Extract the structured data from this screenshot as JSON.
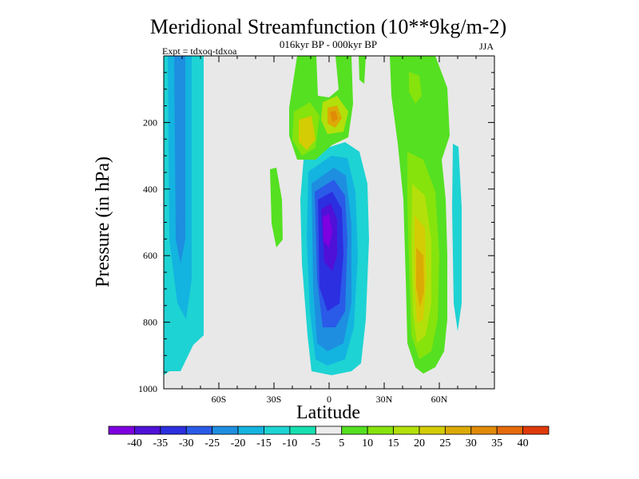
{
  "chart_data": {
    "type": "heatmap",
    "title": "Meridional Streamfunction (10**9kg/m-2)",
    "subtitle": "016kyr BP - 000kyr BP",
    "left_label": "Expt = tdxoq-tdxoa",
    "right_label": "JJA",
    "xlabel": "Latitude",
    "ylabel": "Pressure (in hPa)",
    "x_range": [
      -90,
      90
    ],
    "y_range": [
      0,
      1000
    ],
    "y_reversed": true,
    "x_ticks": [
      {
        "value": -60,
        "label": "60S"
      },
      {
        "value": -30,
        "label": "30S"
      },
      {
        "value": 0,
        "label": "0"
      },
      {
        "value": 30,
        "label": "30N"
      },
      {
        "value": 60,
        "label": "60N"
      }
    ],
    "y_ticks": [
      {
        "value": 200,
        "label": "200"
      },
      {
        "value": 400,
        "label": "400"
      },
      {
        "value": 600,
        "label": "600"
      },
      {
        "value": 800,
        "label": "800"
      },
      {
        "value": 1000,
        "label": "1000"
      }
    ],
    "colorbar": {
      "labels": [
        "-40",
        "-35",
        "-30",
        "-25",
        "-20",
        "-15",
        "-10",
        "-5",
        "5",
        "10",
        "15",
        "20",
        "25",
        "30",
        "35",
        "40"
      ],
      "colors": [
        "#7e00e0",
        "#4f10d8",
        "#2b2fe0",
        "#2a5ae8",
        "#1e8ee0",
        "#13b4e0",
        "#1ed3d3",
        "#17e0b0",
        "#ececec",
        "#55e022",
        "#86e30c",
        "#b3e00a",
        "#d4cc05",
        "#dcaa05",
        "#e08a08",
        "#e56a0a",
        "#e03a0a"
      ]
    },
    "colors": {
      "background_no_change": "#e8e8e8"
    }
  }
}
